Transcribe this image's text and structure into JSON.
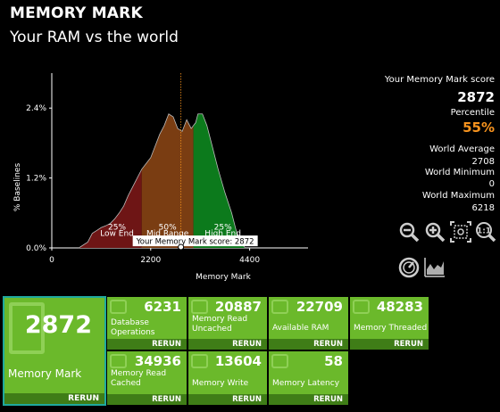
{
  "header": {
    "title": "MEMORY MARK",
    "subtitle": "Your RAM vs the world"
  },
  "score_panel": {
    "score_label": "Your Memory Mark score",
    "score": "2872",
    "percentile_label": "Percentile",
    "percentile": "55%",
    "world_average_label": "World Average",
    "world_average": "2708",
    "world_minimum_label": "World Minimum",
    "world_minimum": "0",
    "world_maximum_label": "World Maximum",
    "world_maximum": "6218"
  },
  "tools": [
    "zoom-out-icon",
    "zoom-in-icon",
    "fit-view-icon",
    "actual-size-icon",
    "gauge-icon",
    "chart-icon"
  ],
  "chart_data": {
    "type": "area",
    "ylabel": "% Baselines",
    "xlabel": "Memory Mark",
    "x_ticks": [
      "0",
      "2200",
      "4400"
    ],
    "y_ticks": [
      "0.0%",
      "1.2%",
      "2.4%"
    ],
    "xlim": [
      0,
      5500
    ],
    "ylim": [
      0,
      3.0
    ],
    "regions": [
      {
        "pct": "25%",
        "name": "Low End",
        "color": "#6e1515"
      },
      {
        "pct": "50%",
        "name": "Mid Range",
        "color": "#7a3d12"
      },
      {
        "pct": "25%",
        "name": "High End",
        "color": "#0c7a1c"
      }
    ],
    "score_marker_label": "Your Memory Mark score: 2872",
    "score": 2872,
    "curve": [
      [
        600,
        0
      ],
      [
        700,
        0.05
      ],
      [
        800,
        0.1
      ],
      [
        900,
        0.25
      ],
      [
        1000,
        0.3
      ],
      [
        1100,
        0.35
      ],
      [
        1200,
        0.38
      ],
      [
        1300,
        0.42
      ],
      [
        1400,
        0.5
      ],
      [
        1500,
        0.6
      ],
      [
        1600,
        0.72
      ],
      [
        1700,
        0.9
      ],
      [
        1800,
        1.05
      ],
      [
        1900,
        1.2
      ],
      [
        2000,
        1.35
      ],
      [
        2100,
        1.45
      ],
      [
        2200,
        1.55
      ],
      [
        2300,
        1.75
      ],
      [
        2400,
        1.95
      ],
      [
        2500,
        2.1
      ],
      [
        2600,
        2.3
      ],
      [
        2700,
        2.25
      ],
      [
        2800,
        2.05
      ],
      [
        2900,
        2.0
      ],
      [
        3000,
        2.2
      ],
      [
        3100,
        2.05
      ],
      [
        3200,
        2.15
      ],
      [
        3250,
        2.3
      ],
      [
        3350,
        2.3
      ],
      [
        3450,
        2.1
      ],
      [
        3550,
        1.8
      ],
      [
        3700,
        1.35
      ],
      [
        3850,
        0.95
      ],
      [
        4000,
        0.6
      ],
      [
        4100,
        0.3
      ],
      [
        4200,
        0.1
      ],
      [
        4300,
        0
      ]
    ],
    "splits": [
      2000,
      3150
    ]
  },
  "tiles": {
    "main": {
      "value": "2872",
      "label": "Memory Mark",
      "rerun": "RERUN"
    },
    "items": [
      {
        "value": "6231",
        "label": "Database\nOperations",
        "rerun": "RERUN"
      },
      {
        "value": "20887",
        "label": "Memory Read\nUncached",
        "rerun": "RERUN"
      },
      {
        "value": "22709",
        "label": "Available RAM",
        "rerun": "RERUN"
      },
      {
        "value": "48283",
        "label": "Memory Threaded",
        "rerun": "RERUN"
      },
      {
        "value": "34936",
        "label": "Memory Read\nCached",
        "rerun": "RERUN"
      },
      {
        "value": "13604",
        "label": "Memory Write",
        "rerun": "RERUN"
      },
      {
        "value": "58",
        "label": "Memory Latency",
        "rerun": "RERUN"
      }
    ]
  }
}
